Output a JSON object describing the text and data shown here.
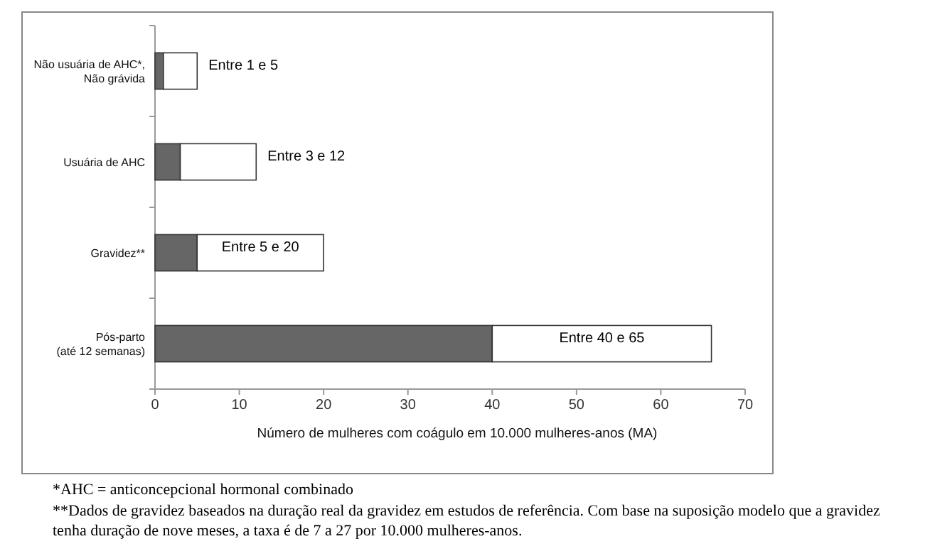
{
  "chart_data": {
    "type": "bar",
    "orientation": "horizontal",
    "stacked": true,
    "categories": [
      "Não usuária de AHC*, Não grávida",
      "Usuária de AHC",
      "Gravidez**",
      "Pós-parto (até 12 semanas)"
    ],
    "series": [
      {
        "color": "#666666",
        "values": [
          1,
          3,
          5,
          40
        ]
      },
      {
        "color": "#ffffff",
        "values": [
          4,
          9,
          15,
          26
        ],
        "value_labels": [
          "Entre 1 e 5",
          "Entre 3 e 12",
          "Entre 5 e 20",
          "Entre 40 e 65"
        ]
      }
    ],
    "xlabel": "Número de mulheres com coágulo em 10.000 mulheres-anos (MA)",
    "xlim": [
      0,
      70
    ],
    "xticks": [
      0,
      10,
      20,
      30,
      40,
      50,
      60,
      70
    ],
    "annotations": [
      "*AHC = anticoncepcional hormonal combinado",
      "**Dados de gravidez baseados na duração real da gravidez em estudos de referência. Com base na suposição modelo que a gravidez tenha duração de nove meses, a taxa é de 7 a 27 por 10.000 mulheres-anos."
    ]
  }
}
